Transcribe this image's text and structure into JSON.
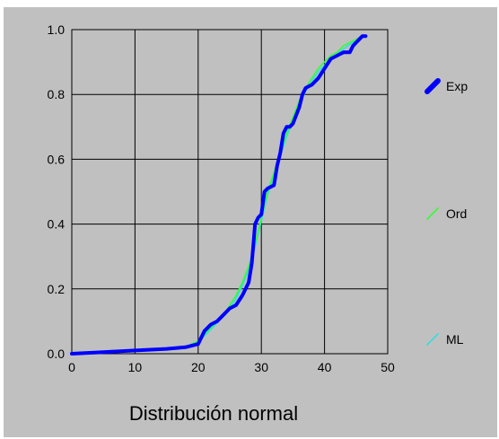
{
  "chart_data": {
    "type": "line",
    "title": "Distribución normal",
    "xlabel": "",
    "ylabel": "",
    "xlim": [
      0,
      50
    ],
    "ylim": [
      0,
      1.0
    ],
    "x_ticks": [
      0,
      10,
      20,
      30,
      40,
      50
    ],
    "y_ticks": [
      0.0,
      0.2,
      0.4,
      0.6,
      0.8,
      1.0
    ],
    "x_tick_labels": [
      "0",
      "10",
      "20",
      "30",
      "40",
      "50"
    ],
    "y_tick_labels": [
      "0.0",
      "0.2",
      "0.4",
      "0.6",
      "0.8",
      "1.0"
    ],
    "grid": true,
    "legend_placement": "right",
    "colors": {
      "background": "#c0c0c0",
      "plot_area": "#c0c0c0",
      "grid": "#000000",
      "Exp": "#0000ff",
      "Ord": "#33ff33",
      "ML": "#33dddd"
    },
    "series": [
      {
        "name": "Exp",
        "style": "thick",
        "x": [
          0,
          5,
          10,
          15,
          18,
          20,
          20.5,
          21,
          22,
          23,
          24,
          25,
          26,
          27,
          28,
          28.5,
          29,
          29.5,
          30,
          30.5,
          31,
          32,
          32.5,
          33,
          33.5,
          34,
          34.5,
          35,
          36,
          36.5,
          37,
          38,
          39,
          40,
          41,
          42,
          43,
          44,
          44.5,
          45,
          45.5,
          46,
          46.5
        ],
        "y": [
          0.0,
          0.005,
          0.01,
          0.015,
          0.02,
          0.03,
          0.05,
          0.07,
          0.09,
          0.1,
          0.12,
          0.14,
          0.15,
          0.18,
          0.22,
          0.28,
          0.4,
          0.42,
          0.43,
          0.5,
          0.51,
          0.52,
          0.58,
          0.62,
          0.68,
          0.7,
          0.7,
          0.71,
          0.76,
          0.8,
          0.82,
          0.83,
          0.85,
          0.88,
          0.91,
          0.92,
          0.93,
          0.93,
          0.95,
          0.96,
          0.97,
          0.98,
          0.98
        ]
      },
      {
        "name": "Ord",
        "style": "thin",
        "x": [
          0,
          5,
          10,
          15,
          18,
          20,
          21,
          22,
          23,
          24,
          25,
          26,
          27,
          28,
          29,
          30,
          31,
          32,
          33,
          34,
          35,
          36,
          37,
          38,
          39,
          40,
          41,
          42,
          43,
          44,
          45,
          46
        ],
        "y": [
          0.0,
          0.005,
          0.01,
          0.015,
          0.02,
          0.04,
          0.06,
          0.08,
          0.1,
          0.12,
          0.15,
          0.18,
          0.22,
          0.27,
          0.34,
          0.42,
          0.5,
          0.56,
          0.62,
          0.68,
          0.73,
          0.78,
          0.82,
          0.85,
          0.88,
          0.9,
          0.92,
          0.93,
          0.95,
          0.96,
          0.97,
          0.98
        ]
      },
      {
        "name": "ML",
        "style": "thin",
        "x": [
          0,
          5,
          10,
          15,
          18,
          20,
          21,
          22,
          23,
          24,
          25,
          26,
          27,
          28,
          29,
          30,
          31,
          32,
          33,
          34,
          35,
          36,
          37,
          38,
          39,
          40,
          41,
          42,
          43,
          44,
          45,
          46
        ],
        "y": [
          0.0,
          0.005,
          0.01,
          0.015,
          0.02,
          0.035,
          0.055,
          0.075,
          0.095,
          0.115,
          0.14,
          0.17,
          0.21,
          0.26,
          0.33,
          0.41,
          0.49,
          0.55,
          0.61,
          0.67,
          0.72,
          0.77,
          0.81,
          0.84,
          0.87,
          0.89,
          0.91,
          0.925,
          0.94,
          0.955,
          0.965,
          0.975
        ]
      }
    ]
  }
}
